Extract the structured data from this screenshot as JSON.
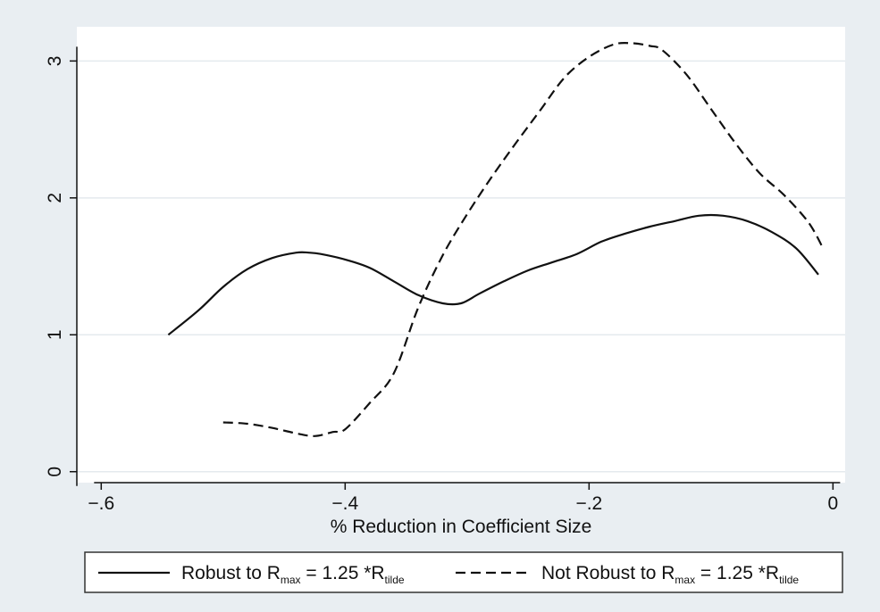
{
  "chart_data": {
    "type": "line",
    "title": "",
    "xlabel": "% Reduction in Coefficient Size",
    "ylabel": "",
    "xlim": [
      -0.62,
      0.01
    ],
    "ylim": [
      -0.08,
      3.25
    ],
    "xticks": [
      -0.6,
      -0.4,
      -0.2,
      0
    ],
    "xtick_labels": [
      "−.6",
      "−.4",
      "−.2",
      "0"
    ],
    "yticks": [
      0,
      1,
      2,
      3
    ],
    "ytick_labels": [
      "0",
      "1",
      "2",
      "3"
    ],
    "grid": "horizontal",
    "legend_position": "bottom",
    "colors": {
      "background": "#e9eef2",
      "plot": "#ffffff",
      "line": "#111111",
      "grid": "#e4eaee"
    },
    "series": [
      {
        "legend": {
          "pre": "Robust to R",
          "sub1": "max",
          "mid": " = 1.25 *R",
          "sub2": "tilde"
        },
        "style": "solid",
        "x": [
          -0.545,
          -0.52,
          -0.5,
          -0.48,
          -0.46,
          -0.44,
          -0.43,
          -0.42,
          -0.4,
          -0.38,
          -0.36,
          -0.34,
          -0.32,
          -0.305,
          -0.29,
          -0.27,
          -0.25,
          -0.23,
          -0.21,
          -0.19,
          -0.17,
          -0.15,
          -0.13,
          -0.11,
          -0.09,
          -0.07,
          -0.05,
          -0.03,
          -0.012
        ],
        "y": [
          1.0,
          1.18,
          1.35,
          1.48,
          1.56,
          1.6,
          1.6,
          1.59,
          1.55,
          1.49,
          1.39,
          1.29,
          1.23,
          1.23,
          1.3,
          1.39,
          1.47,
          1.53,
          1.59,
          1.68,
          1.74,
          1.79,
          1.83,
          1.87,
          1.87,
          1.83,
          1.75,
          1.63,
          1.44
        ]
      },
      {
        "legend": {
          "pre": "Not Robust to R",
          "sub1": "max",
          "mid": " = 1.25 *R",
          "sub2": "tilde"
        },
        "style": "dashed",
        "x": [
          -0.5,
          -0.48,
          -0.46,
          -0.44,
          -0.425,
          -0.41,
          -0.4,
          -0.38,
          -0.36,
          -0.34,
          -0.32,
          -0.3,
          -0.28,
          -0.26,
          -0.24,
          -0.22,
          -0.2,
          -0.18,
          -0.165,
          -0.15,
          -0.14,
          -0.12,
          -0.1,
          -0.08,
          -0.06,
          -0.04,
          -0.02,
          -0.008
        ],
        "y": [
          0.36,
          0.35,
          0.32,
          0.28,
          0.26,
          0.29,
          0.31,
          0.5,
          0.72,
          1.2,
          1.58,
          1.88,
          2.15,
          2.4,
          2.64,
          2.88,
          3.03,
          3.12,
          3.13,
          3.11,
          3.08,
          2.9,
          2.65,
          2.4,
          2.18,
          2.02,
          1.82,
          1.63
        ]
      }
    ]
  }
}
